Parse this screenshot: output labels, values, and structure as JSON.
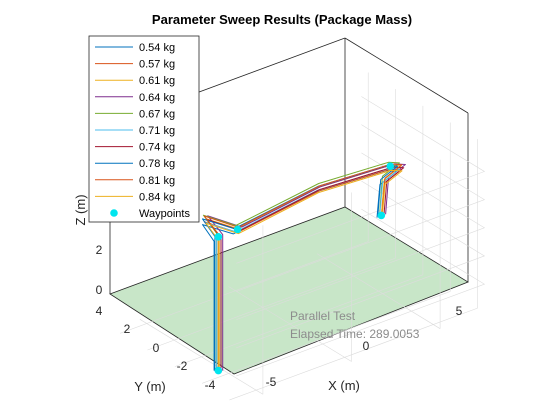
{
  "chart_data": {
    "type": "line-3d",
    "title": "Parameter Sweep Results (Package Mass)",
    "xlabel": "X (m)",
    "ylabel": "Y (m)",
    "zlabel": "Z (m)",
    "x_ticks": [
      "-5",
      "0",
      "5"
    ],
    "y_ticks": [
      "4",
      "2",
      "0",
      "-2",
      "-4"
    ],
    "z_ticks": [
      "0",
      "2"
    ],
    "xlim": [
      -6.5,
      7.5
    ],
    "ylim": [
      -4.5,
      4.5
    ],
    "zlim": [
      0,
      12
    ],
    "grid": true,
    "ground_color": "#c8e6c8",
    "legend_position": "top-left",
    "series": [
      {
        "name": "0.54 kg",
        "color": "#0072bd"
      },
      {
        "name": "0.57 kg",
        "color": "#d95319"
      },
      {
        "name": "0.61 kg",
        "color": "#edb120"
      },
      {
        "name": "0.64 kg",
        "color": "#7e2f8e"
      },
      {
        "name": "0.67 kg",
        "color": "#77ac30"
      },
      {
        "name": "0.71 kg",
        "color": "#4dbeee"
      },
      {
        "name": "0.74 kg",
        "color": "#a2142f"
      },
      {
        "name": "0.78 kg",
        "color": "#0072bd"
      },
      {
        "name": "0.81 kg",
        "color": "#d95319"
      },
      {
        "name": "0.84 kg",
        "color": "#edb120"
      }
    ],
    "waypoints_label": "Waypoints",
    "waypoint_color": "#00e5ee",
    "waypoints": [
      {
        "x": -5.2,
        "y": 1.5,
        "z": 0
      },
      {
        "x": -5.2,
        "y": 1.5,
        "z": 9.5
      },
      {
        "x": -4.5,
        "y": 2.0,
        "z": 10
      },
      {
        "x": 4.5,
        "y": 1.5,
        "z": 10
      },
      {
        "x": 5.0,
        "y": 0.2,
        "z": 5.5
      }
    ],
    "annotations": [
      "Parallel Test",
      "Elapsed Time: 289.0053"
    ]
  }
}
